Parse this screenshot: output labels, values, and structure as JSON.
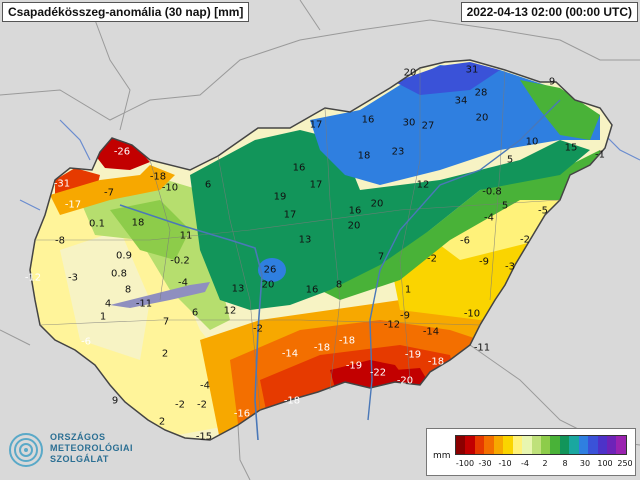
{
  "header": {
    "title": "Csapadékösszeg-anomália (30 nap) [mm]",
    "timestamp": "2022-04-13 02:00 (00:00 UTC)"
  },
  "logo": {
    "line1": "ORSZÁGOS",
    "line2": "METEOROLÓGIAI",
    "line3": "SZOLGÁLAT"
  },
  "legend": {
    "unit": "mm",
    "tick_labels": [
      "-100",
      "-30",
      "-10",
      "-4",
      "2",
      "8",
      "30",
      "100",
      "250"
    ],
    "colors": [
      "#8b0000",
      "#c20000",
      "#e63a00",
      "#f36f00",
      "#f7a800",
      "#fad400",
      "#fff27a",
      "#e8f6b0",
      "#bfe17a",
      "#8dcc4a",
      "#49b238",
      "#12955a",
      "#1aa7a0",
      "#2f7fe0",
      "#3a52d8",
      "#4d32c8",
      "#6d23b8",
      "#9a23b0"
    ]
  },
  "map": {
    "colors": {
      "background": "#d9d9d9",
      "deep_red": "#c20000",
      "red": "#e63a00",
      "orange": "#f36f00",
      "yellow": "#f7d000",
      "pale_yellow": "#fff49a",
      "cream": "#f7f3c4",
      "light_green": "#b6de6e",
      "green": "#2fa64a",
      "teal": "#12955a",
      "blue": "#2f7fe0"
    },
    "stations": [
      {
        "v": "20"
      },
      {
        "v": "31"
      },
      {
        "v": "9"
      },
      {
        "v": "34"
      },
      {
        "v": "28"
      },
      {
        "v": "17"
      },
      {
        "v": "30"
      },
      {
        "v": "27"
      },
      {
        "v": "20"
      },
      {
        "v": "16"
      },
      {
        "v": "10"
      },
      {
        "v": "15"
      },
      {
        "v": "-1"
      },
      {
        "v": "23"
      },
      {
        "v": "18"
      },
      {
        "v": "5"
      },
      {
        "v": "-26"
      },
      {
        "v": "16"
      },
      {
        "v": "12"
      },
      {
        "v": "-0.8"
      },
      {
        "v": "-31"
      },
      {
        "v": "-18"
      },
      {
        "v": "-10"
      },
      {
        "v": "6"
      },
      {
        "v": "-7"
      },
      {
        "v": "17"
      },
      {
        "v": "19"
      },
      {
        "v": "5"
      },
      {
        "v": "-17"
      },
      {
        "v": "20"
      },
      {
        "v": "0.1"
      },
      {
        "v": "18"
      },
      {
        "v": "17"
      },
      {
        "v": "16"
      },
      {
        "v": "-5"
      },
      {
        "v": "-4"
      },
      {
        "v": "20"
      },
      {
        "v": "11"
      },
      {
        "v": "13"
      },
      {
        "v": "-8"
      },
      {
        "v": "-6"
      },
      {
        "v": "-2"
      },
      {
        "v": "0.9"
      },
      {
        "v": "-0.2"
      },
      {
        "v": "7"
      },
      {
        "v": "-2"
      },
      {
        "v": "-9"
      },
      {
        "v": "-3"
      },
      {
        "v": "-12"
      },
      {
        "v": "-3"
      },
      {
        "v": "0.8"
      },
      {
        "v": "26"
      },
      {
        "v": "-4"
      },
      {
        "v": "13"
      },
      {
        "v": "20"
      },
      {
        "v": "16"
      },
      {
        "v": "8"
      },
      {
        "v": "1"
      },
      {
        "v": "8"
      },
      {
        "v": "4"
      },
      {
        "v": "-11"
      },
      {
        "v": "1"
      },
      {
        "v": "7"
      },
      {
        "v": "6"
      },
      {
        "v": "12"
      },
      {
        "v": "-9"
      },
      {
        "v": "-10"
      },
      {
        "v": "-2"
      },
      {
        "v": "-12"
      },
      {
        "v": "-14"
      },
      {
        "v": "-6"
      },
      {
        "v": "-18"
      },
      {
        "v": "-14"
      },
      {
        "v": "-18"
      },
      {
        "v": "-11"
      },
      {
        "v": "2"
      },
      {
        "v": "-19"
      },
      {
        "v": "-22"
      },
      {
        "v": "-18"
      },
      {
        "v": "-4"
      },
      {
        "v": "-19"
      },
      {
        "v": "-20"
      },
      {
        "v": "9"
      },
      {
        "v": "-2"
      },
      {
        "v": "-2"
      },
      {
        "v": "-18"
      },
      {
        "v": "-16"
      },
      {
        "v": "2"
      },
      {
        "v": "-15"
      }
    ]
  }
}
